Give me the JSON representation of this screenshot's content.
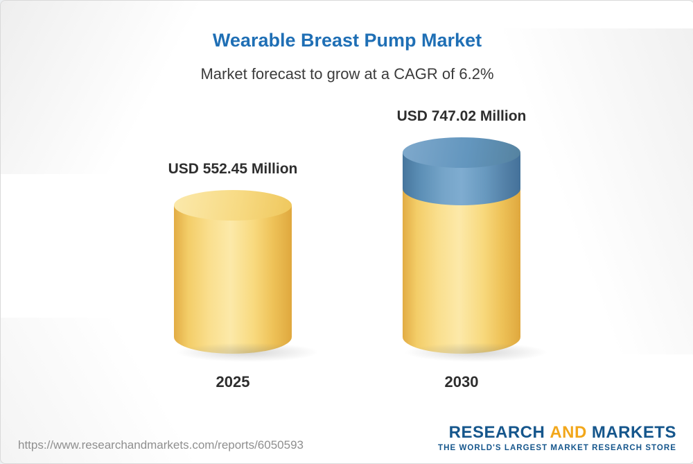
{
  "header": {
    "title": "Wearable Breast Pump Market",
    "subtitle": "Market forecast to grow at a CAGR of 6.2%"
  },
  "chart_data": {
    "type": "bar",
    "title": "Wearable Breast Pump Market",
    "subtitle": "Market forecast to grow at a CAGR of 6.2%",
    "cagr_percent": 6.2,
    "unit": "USD Million",
    "categories": [
      "2025",
      "2030"
    ],
    "values": [
      552.45,
      747.02
    ],
    "value_labels": [
      "USD 552.45 Million",
      "USD 747.02 Million"
    ],
    "ylim": [
      0,
      747.02
    ],
    "grid": false,
    "legend_position": "none",
    "colors": {
      "base_segment": "#F6CF65",
      "growth_segment": "#5E93BE",
      "title": "#1F6FB5",
      "label_text": "#2E2E2E"
    }
  },
  "footer": {
    "url": "https://www.researchandmarkets.com/reports/6050593",
    "logo": {
      "part1": "RESEARCH",
      "part2": "AND",
      "part3": "MARKETS",
      "tagline": "THE WORLD'S LARGEST MARKET RESEARCH STORE"
    }
  }
}
